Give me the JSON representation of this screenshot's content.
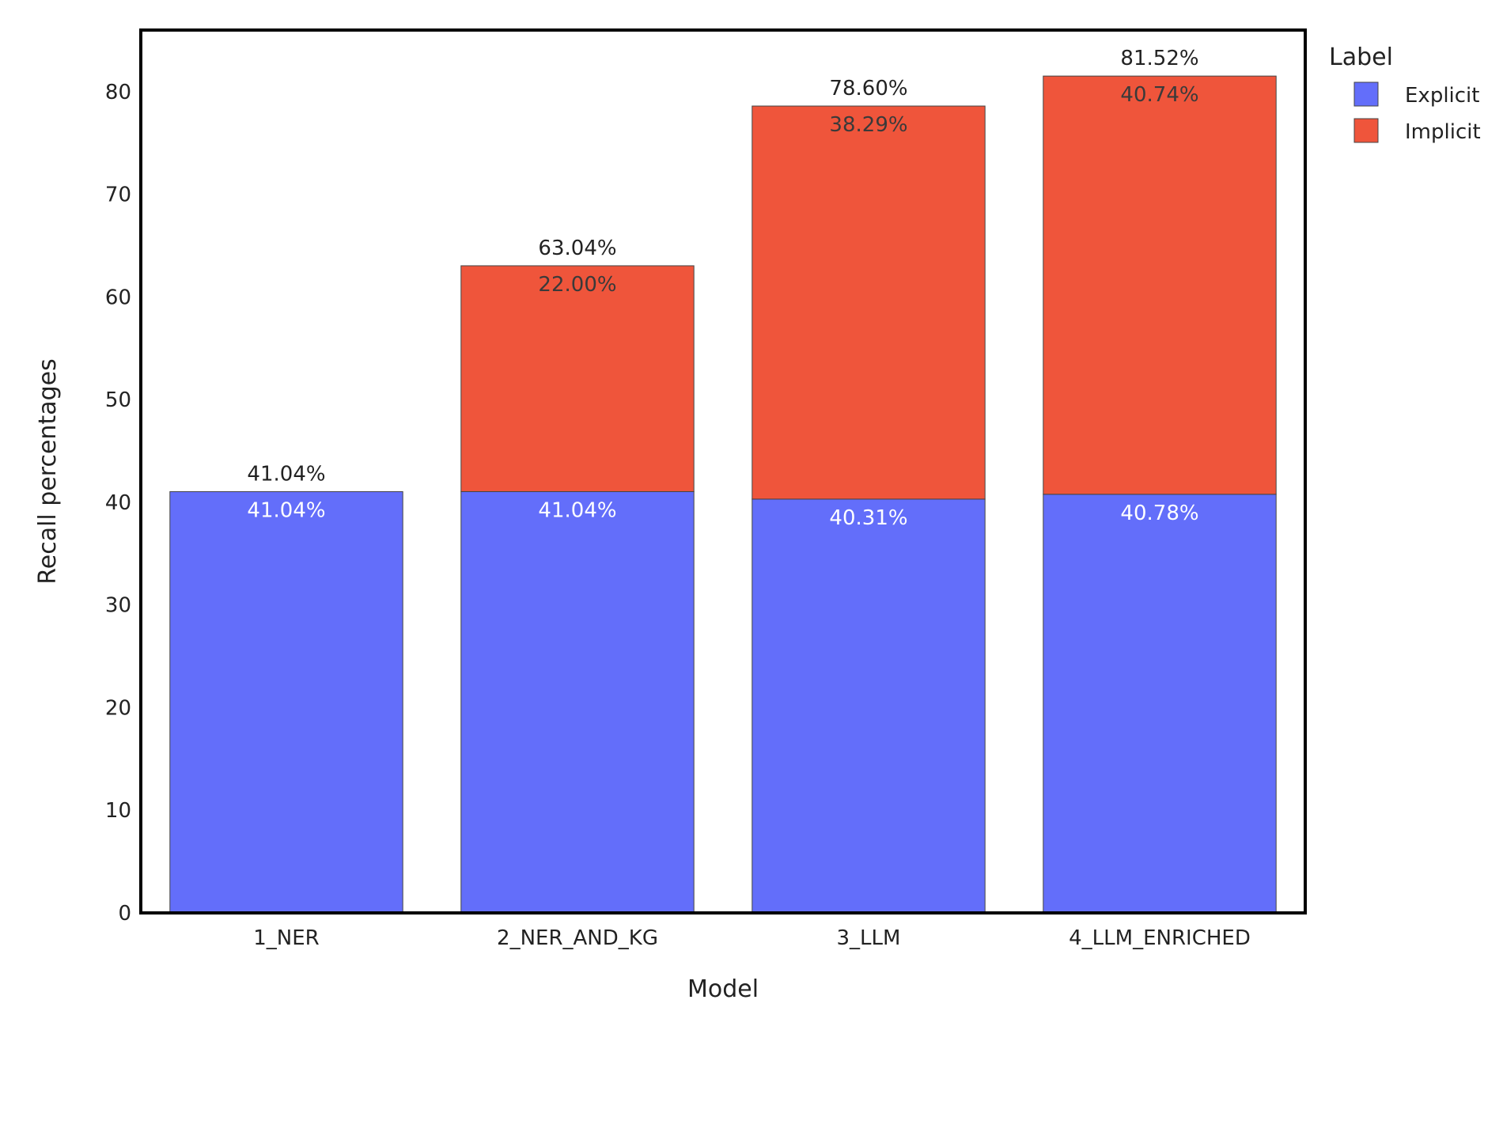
{
  "chart_data": {
    "type": "bar",
    "stacked": true,
    "xlabel": "Model",
    "ylabel": "Recall percentages",
    "ylim": [
      0,
      86
    ],
    "yticks": [
      0,
      10,
      20,
      30,
      40,
      50,
      60,
      70,
      80
    ],
    "categories": [
      "1_NER",
      "2_NER_AND_KG",
      "3_LLM",
      "4_LLM_ENRICHED"
    ],
    "series": [
      {
        "name": "Explicit",
        "color": "#636efa",
        "label_color": "#ffffff",
        "values": [
          41.04,
          41.04,
          40.31,
          40.78
        ],
        "labels": [
          "41.04%",
          "41.04%",
          "40.31%",
          "40.78%"
        ]
      },
      {
        "name": "Implicit",
        "color": "#ef553b",
        "label_color": "#3a3a3a",
        "values": [
          null,
          22.0,
          38.29,
          40.74
        ],
        "labels": [
          null,
          "22.00%",
          "38.29%",
          "40.74%"
        ]
      }
    ],
    "totals": [
      41.04,
      63.04,
      78.6,
      81.52
    ],
    "total_labels": [
      "41.04%",
      "63.04%",
      "78.60%",
      "81.52%"
    ],
    "legend": {
      "title": "Label",
      "position": "top-right, outside plot"
    },
    "grid": false
  }
}
